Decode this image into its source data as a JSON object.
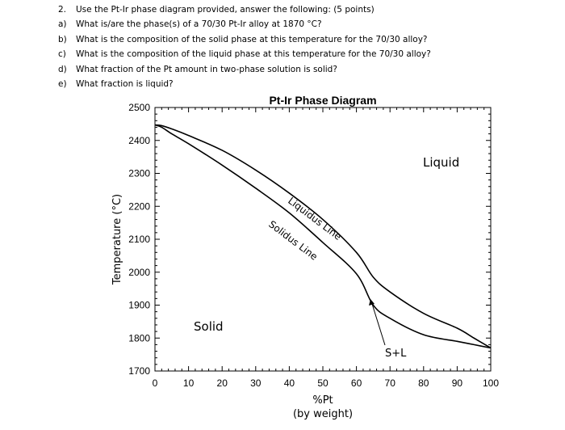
{
  "questions": [
    {
      "marker": "2.",
      "text": "Use the Pt-Ir phase diagram provided, answer the following: (5 points)"
    },
    {
      "marker": "a)",
      "text": "What is/are the phase(s) of a 70/30 Pt-Ir alloy at 1870 °C?"
    },
    {
      "marker": "b)",
      "text": "What is the composition of the solid phase at this temperature for the 70/30 alloy?"
    },
    {
      "marker": "c)",
      "text": "What is the composition of the liquid phase at this temperature for the 70/30 alloy?"
    },
    {
      "marker": "d)",
      "text": "What fraction of the Pt amount in two-phase solution is solid?"
    },
    {
      "marker": "e)",
      "text": "What fraction is liquid?"
    }
  ],
  "chart_data": {
    "type": "line",
    "title": "Pt-Ir Phase Diagram",
    "xlabel": "%Pt",
    "xlabel_sub": "(by weight)",
    "ylabel": "Temperature (°C)",
    "xlim": [
      0,
      100
    ],
    "ylim": [
      1700,
      2500
    ],
    "xticks": [
      0,
      10,
      20,
      30,
      40,
      50,
      60,
      70,
      80,
      90,
      100
    ],
    "yticks": [
      1700,
      1800,
      1900,
      2000,
      2100,
      2200,
      2300,
      2400,
      2500
    ],
    "grid": false,
    "series": [
      {
        "name": "Liquidus Line",
        "x": [
          0,
          2,
          5,
          10,
          20,
          30,
          40,
          50,
          60,
          65,
          70,
          80,
          90,
          95,
          100
        ],
        "y": [
          2447,
          2445,
          2435,
          2415,
          2370,
          2310,
          2240,
          2160,
          2060,
          1985,
          1940,
          1875,
          1830,
          1800,
          1770
        ]
      },
      {
        "name": "Solidus Line",
        "x": [
          0,
          2,
          5,
          10,
          20,
          30,
          40,
          50,
          60,
          65,
          70,
          80,
          90,
          95,
          100
        ],
        "y": [
          2447,
          2440,
          2420,
          2390,
          2325,
          2255,
          2180,
          2090,
          1995,
          1900,
          1860,
          1810,
          1790,
          1780,
          1770
        ]
      }
    ],
    "annotations": {
      "solid": "Solid",
      "liquid": "Liquid",
      "two_phase": "S+L",
      "liquidus": "Liquidus Line",
      "solidus": "Solidus Line"
    }
  }
}
